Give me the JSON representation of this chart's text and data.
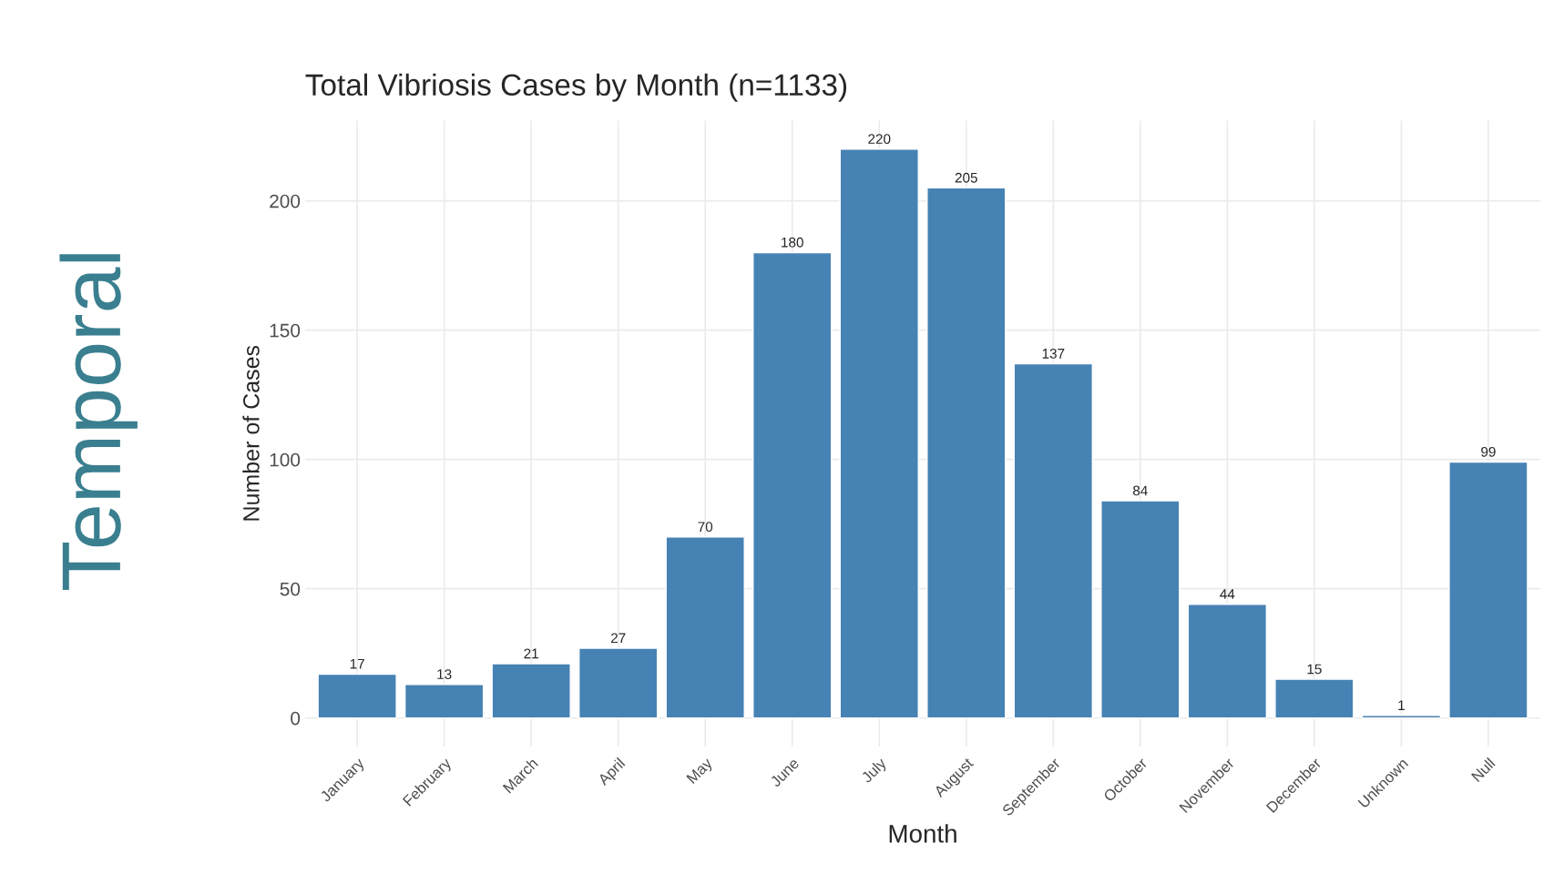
{
  "chart_data": {
    "type": "bar",
    "title": "Total Vibriosis Cases by Month (n=1133)",
    "xlabel": "Month",
    "ylabel": "Number of Cases",
    "categories": [
      "January",
      "February",
      "March",
      "April",
      "May",
      "June",
      "July",
      "August",
      "September",
      "October",
      "November",
      "December",
      "Unknown",
      "Null"
    ],
    "values": [
      17,
      13,
      21,
      27,
      70,
      180,
      220,
      205,
      137,
      84,
      44,
      15,
      1,
      99
    ],
    "color": "#4682b4",
    "ylim": [
      -11,
      231
    ],
    "yticks": [
      0,
      50,
      100,
      150,
      200
    ],
    "grid": true,
    "data_labels": true,
    "annotations": [
      "Temporal"
    ]
  }
}
